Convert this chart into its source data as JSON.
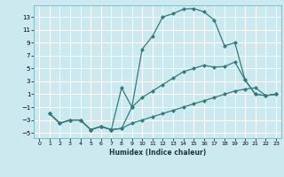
{
  "xlabel": "Humidex (Indice chaleur)",
  "bg_color": "#cce9f0",
  "grid_color": "#ffffff",
  "line_color": "#2e7d7d",
  "xlim": [
    -0.5,
    23.5
  ],
  "ylim": [
    -5.8,
    14.8
  ],
  "xticks": [
    0,
    1,
    2,
    3,
    4,
    5,
    6,
    7,
    8,
    9,
    10,
    11,
    12,
    13,
    14,
    15,
    16,
    17,
    18,
    19,
    20,
    21,
    22,
    23
  ],
  "yticks": [
    -5,
    -3,
    -1,
    1,
    3,
    5,
    7,
    9,
    11,
    13
  ],
  "line1_x": [
    1,
    2,
    3,
    4,
    5,
    6,
    7,
    8,
    9,
    10,
    11,
    12,
    13,
    14,
    15,
    16,
    17,
    18,
    19,
    20,
    21,
    22,
    23
  ],
  "line1_y": [
    -2,
    -3.5,
    -3,
    -3,
    -4.5,
    -4,
    -4.5,
    2,
    -1,
    8,
    10,
    13,
    13.5,
    14.2,
    14.3,
    13.8,
    12.5,
    8.5,
    9,
    3.2,
    1,
    0.8,
    1
  ],
  "line2_x": [
    1,
    2,
    3,
    4,
    5,
    6,
    7,
    8,
    9,
    10,
    11,
    12,
    13,
    14,
    15,
    16,
    17,
    18,
    19,
    20,
    21,
    22,
    23
  ],
  "line2_y": [
    -2,
    -3.5,
    -3,
    -3,
    -4.5,
    -4,
    -4.5,
    -4.3,
    -1,
    0.5,
    1.5,
    2.5,
    3.5,
    4.5,
    5.0,
    5.5,
    5.2,
    5.3,
    6.0,
    3.2,
    1,
    0.8,
    1
  ],
  "line3_x": [
    1,
    2,
    3,
    4,
    5,
    6,
    7,
    8,
    9,
    10,
    11,
    12,
    13,
    14,
    15,
    16,
    17,
    18,
    19,
    20,
    21,
    22,
    23
  ],
  "line3_y": [
    -2,
    -3.5,
    -3,
    -3,
    -4.5,
    -4,
    -4.5,
    -4.3,
    -3.5,
    -3,
    -2.5,
    -2,
    -1.5,
    -1,
    -0.5,
    0,
    0.5,
    1.0,
    1.5,
    1.8,
    2.0,
    0.8,
    1
  ]
}
